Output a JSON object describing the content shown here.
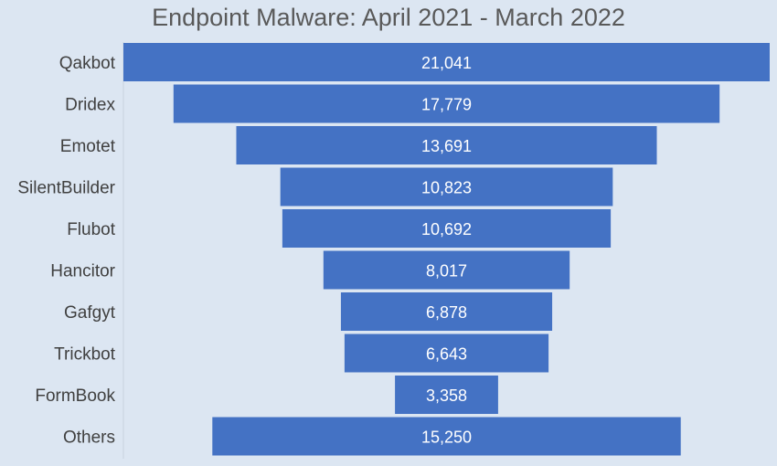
{
  "chart_data": {
    "type": "bar",
    "orientation": "horizontal-funnel",
    "title": "Endpoint Malware: April 2021 - March 2022",
    "categories": [
      "Qakbot",
      "Dridex",
      "Emotet",
      "SilentBuilder",
      "Flubot",
      "Hancitor",
      "Gafgyt",
      "Trickbot",
      "FormBook",
      "Others"
    ],
    "values": [
      21041,
      17779,
      13691,
      10823,
      10692,
      8017,
      6878,
      6643,
      3358,
      15250
    ],
    "value_labels": [
      "21,041",
      "17,779",
      "13,691",
      "10,823",
      "10,692",
      "8,017",
      "6,878",
      "6,643",
      "3,358",
      "15,250"
    ],
    "xlabel": "",
    "ylabel": "",
    "grid": false,
    "legend": "none",
    "bar_color": "#4472c4"
  }
}
